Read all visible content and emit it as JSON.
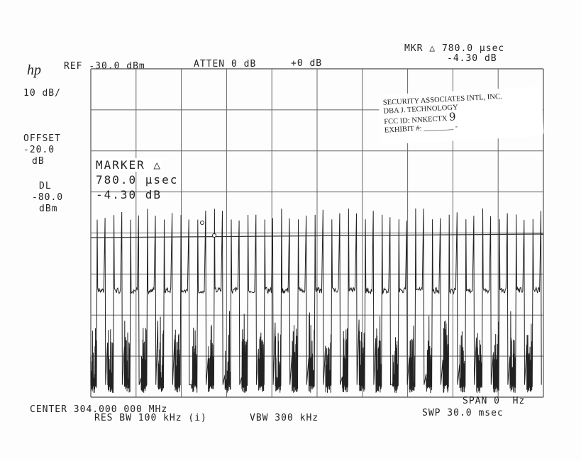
{
  "header": {
    "logo": "hp",
    "ref": "REF -30.0 dBm",
    "atten": "ATTEN 0 dB",
    "offset_db": "+0 dB",
    "mkr_line1": "MKR △ 780.0 μsec",
    "mkr_line2": "-4.30 dB"
  },
  "left_panel": {
    "scale": "10 dB/",
    "offset_label": "OFFSET",
    "offset_value": "-20.0",
    "offset_unit": "dB",
    "dl_label": "DL",
    "dl_value": "-80.0",
    "dl_unit": "dBm"
  },
  "marker_readout": {
    "title": "MARKER △",
    "time": "780.0 μsec",
    "level": "-4.30 dB"
  },
  "stamp": {
    "line1": "SECURITY ASSOCIATES INTL, INC.",
    "line2": "DBA J. TECHNOLOGY",
    "line3": "FCC ID: NNKECTX",
    "handwritten": "9",
    "line4": "EXHIBIT #: ________ -"
  },
  "footer": {
    "center": "CENTER 304.000 000 MHz",
    "res_bw": "RES BW 100 kHz (i)",
    "vbw": "VBW 300 kHz",
    "span": "SPAN 0  Hz",
    "sweep": "SWP 30.0 msec"
  },
  "chart_data": {
    "type": "line",
    "title": "",
    "xlabel": "",
    "ylabel": "",
    "xlim_msec": [
      0,
      30
    ],
    "ylim_dBm": [
      -110,
      -30
    ],
    "grid": true,
    "grid_divisions": {
      "x": 10,
      "y": 8
    },
    "trace_color": "#222222",
    "pulse_count": 27,
    "levels_dBm": {
      "pulse_peak": -67,
      "plateau": -84,
      "noise_floor_high": -93,
      "noise_floor_low": -107
    }
  }
}
